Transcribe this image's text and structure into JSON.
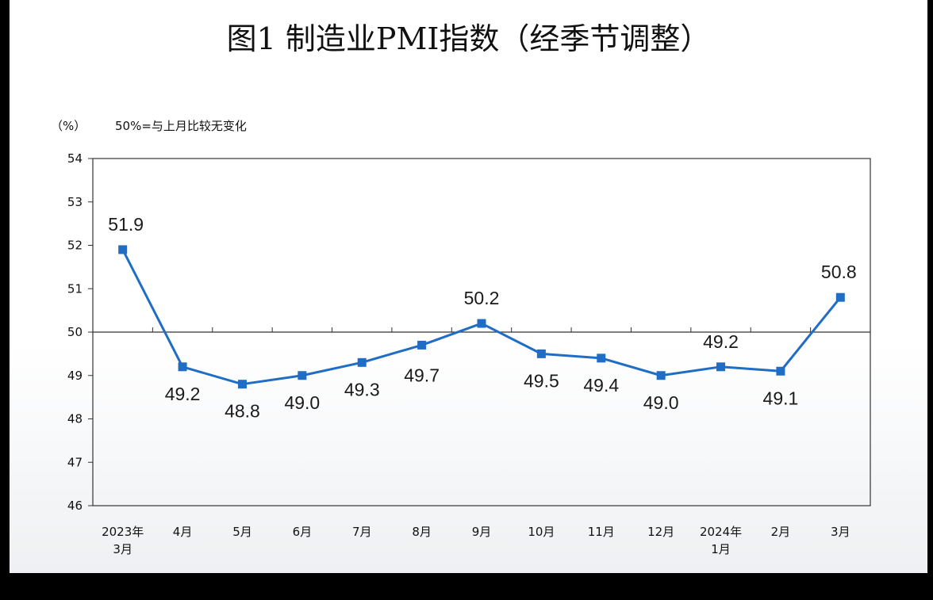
{
  "chart_data": {
    "type": "line",
    "title": "图1  制造业PMI指数（经季节调整）",
    "ylabel": "（%）",
    "note": "50%=与上月比较无变化",
    "ylim": [
      46,
      54
    ],
    "yticks": [
      "46",
      "47",
      "48",
      "49",
      "50",
      "51",
      "52",
      "53",
      "54"
    ],
    "reference_line": 50,
    "categories": [
      "2023年\n3月",
      "4月",
      "5月",
      "6月",
      "7月",
      "8月",
      "9月",
      "10月",
      "11月",
      "12月",
      "2024年\n1月",
      "2月",
      "3月"
    ],
    "series": [
      {
        "values": [
          51.9,
          49.2,
          48.8,
          49.0,
          49.3,
          49.7,
          50.2,
          49.5,
          49.4,
          49.0,
          49.2,
          49.1,
          50.8
        ],
        "labels": [
          "51.9",
          "49.2",
          "48.8",
          "49.0",
          "49.3",
          "49.7",
          "50.2",
          "49.5",
          "49.4",
          "49.0",
          "49.2",
          "49.1",
          "50.8"
        ]
      }
    ],
    "grid": false,
    "line_color": "#1f6dc4"
  }
}
